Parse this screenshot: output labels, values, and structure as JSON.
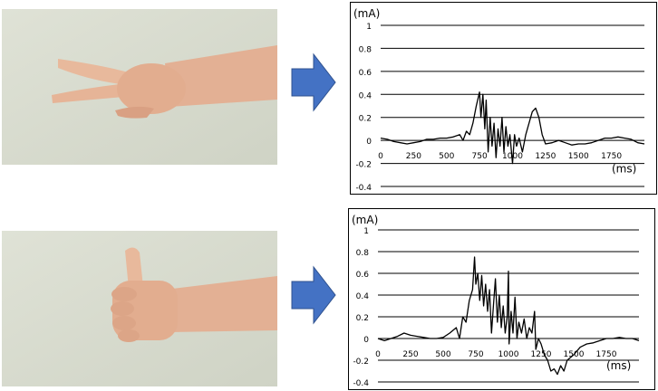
{
  "colors": {
    "arrow": "#4472C4",
    "arrow_border": "#2F528F",
    "skin": "#e6b497",
    "photo_bg": "#d9dccf"
  },
  "rows": [
    {
      "gesture": "peace-sign-hand",
      "icon": "arrow-right-icon"
    },
    {
      "gesture": "thumbs-up-hand",
      "icon": "arrow-right-icon"
    }
  ],
  "chart_data": [
    {
      "type": "line",
      "ylabel": "(mA)",
      "xlabel": "(ms)",
      "ylim": [
        -0.4,
        1
      ],
      "xlim": [
        0,
        2000
      ],
      "grid": true,
      "yticks": [
        "1",
        "0.8",
        "0.6",
        "0.4",
        "0.2",
        "0",
        "-0.2",
        "-0.4"
      ],
      "xticks": [
        "0",
        "250",
        "500",
        "750",
        "1000",
        "1250",
        "1500",
        "1750"
      ],
      "x": [
        0,
        50,
        100,
        150,
        200,
        250,
        300,
        350,
        400,
        450,
        500,
        550,
        600,
        625,
        650,
        675,
        700,
        725,
        750,
        760,
        775,
        790,
        800,
        815,
        830,
        845,
        860,
        875,
        890,
        905,
        920,
        935,
        950,
        965,
        980,
        1000,
        1015,
        1030,
        1050,
        1075,
        1100,
        1125,
        1150,
        1175,
        1200,
        1225,
        1250,
        1300,
        1350,
        1400,
        1450,
        1500,
        1550,
        1600,
        1650,
        1700,
        1750,
        1800,
        1850,
        1900,
        1950,
        2000
      ],
      "y": [
        0.02,
        0.01,
        -0.01,
        -0.02,
        -0.03,
        -0.02,
        -0.01,
        0.01,
        0.01,
        0.02,
        0.02,
        0.03,
        0.05,
        0.0,
        0.08,
        0.05,
        0.15,
        0.3,
        0.42,
        0.2,
        0.4,
        0.1,
        0.35,
        -0.1,
        0.2,
        -0.05,
        0.15,
        -0.15,
        0.1,
        -0.05,
        0.2,
        -0.1,
        0.12,
        -0.05,
        0.05,
        -0.2,
        0.05,
        -0.05,
        0.02,
        -0.1,
        0.05,
        0.15,
        0.25,
        0.28,
        0.2,
        0.05,
        -0.03,
        -0.02,
        0.0,
        -0.02,
        -0.04,
        -0.03,
        -0.03,
        -0.02,
        0.0,
        0.02,
        0.02,
        0.03,
        0.02,
        0.01,
        -0.02,
        -0.03
      ]
    },
    {
      "type": "line",
      "ylabel": "(mA)",
      "xlabel": "(ms)",
      "ylim": [
        -0.4,
        1
      ],
      "xlim": [
        0,
        2000
      ],
      "grid": true,
      "yticks": [
        "1",
        "0.8",
        "0.6",
        "0.4",
        "0.2",
        "0",
        "-0.2",
        "-0.4"
      ],
      "xticks": [
        "0",
        "250",
        "500",
        "750",
        "1000",
        "1250",
        "1500",
        "1750"
      ],
      "x": [
        0,
        50,
        100,
        150,
        200,
        250,
        300,
        350,
        400,
        450,
        500,
        550,
        600,
        625,
        650,
        675,
        700,
        725,
        740,
        750,
        765,
        780,
        795,
        810,
        825,
        840,
        855,
        870,
        885,
        900,
        915,
        930,
        945,
        960,
        975,
        990,
        1000,
        1005,
        1020,
        1035,
        1050,
        1065,
        1080,
        1100,
        1120,
        1140,
        1160,
        1180,
        1200,
        1210,
        1230,
        1250,
        1275,
        1300,
        1325,
        1350,
        1375,
        1400,
        1425,
        1450,
        1500,
        1550,
        1600,
        1650,
        1700,
        1750,
        1800,
        1850,
        1900,
        1950,
        2000
      ],
      "y": [
        0.0,
        -0.02,
        0.0,
        0.02,
        0.05,
        0.03,
        0.02,
        0.01,
        0.0,
        0.0,
        0.01,
        0.05,
        0.1,
        0.0,
        0.2,
        0.15,
        0.35,
        0.45,
        0.75,
        0.5,
        0.6,
        0.35,
        0.58,
        0.3,
        0.5,
        0.25,
        0.45,
        0.05,
        0.3,
        0.55,
        0.15,
        0.4,
        0.1,
        0.3,
        0.05,
        0.2,
        0.62,
        -0.05,
        0.25,
        0.05,
        0.38,
        0.0,
        0.15,
        0.05,
        0.18,
        0.0,
        0.1,
        0.05,
        0.25,
        -0.1,
        0.0,
        -0.05,
        -0.15,
        -0.2,
        -0.3,
        -0.28,
        -0.33,
        -0.25,
        -0.3,
        -0.2,
        -0.15,
        -0.08,
        -0.05,
        -0.04,
        -0.02,
        0.0,
        0.0,
        0.01,
        0.0,
        0.0,
        -0.02
      ]
    }
  ]
}
